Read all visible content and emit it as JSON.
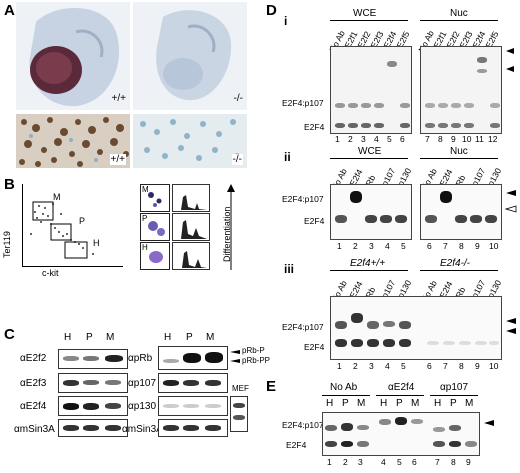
{
  "panels": {
    "a": "A",
    "b": "B",
    "c": "C",
    "d": "D",
    "e": "E"
  },
  "panel_a": {
    "wt": "+/+",
    "ko": "-/-",
    "wt2": "+/+",
    "ko2": "-/-"
  },
  "panel_b": {
    "yaxis": "Ter119",
    "xaxis": "c-kit",
    "gates": [
      "M",
      "P",
      "H"
    ],
    "side": [
      "M",
      "P",
      "H"
    ],
    "diff": "Differentiation"
  },
  "panel_c": {
    "lanes": [
      "H",
      "P",
      "M"
    ],
    "lanes2": [
      "H",
      "P",
      "M"
    ],
    "left": [
      "αE2f2",
      "αE2f3",
      "αE2f4",
      "αmSin3A"
    ],
    "right": [
      "αpRb",
      "αp107",
      "αp130",
      "αmSin3A"
    ],
    "prb": [
      "pRb-P",
      "pRb-PP"
    ],
    "mef": "MEF"
  },
  "panel_d": {
    "sub": [
      "i",
      "ii",
      "iii"
    ],
    "i": {
      "groups": [
        "WCE",
        "Nuc"
      ],
      "lanes": [
        "No Ab",
        "αE2f1",
        "αE2f2",
        "αE2f3",
        "αE2f4",
        "αE2f5",
        "No Ab",
        "αE2f1",
        "αE2f2",
        "αE2f3",
        "αE2f4",
        "αE2f5"
      ],
      "nums": [
        "1",
        "2",
        "3",
        "4",
        "5",
        "6",
        "7",
        "8",
        "9",
        "10",
        "11",
        "12"
      ],
      "bands": [
        "E2F4:p107",
        "E2F4"
      ]
    },
    "ii": {
      "groups": [
        "WCE",
        "Nuc"
      ],
      "lanes": [
        "No Ab",
        "αE2f4",
        "αRb",
        "αp107",
        "αp130",
        "No Ab",
        "αE2f4",
        "αRb",
        "αp107",
        "αp130"
      ],
      "nums": [
        "1",
        "2",
        "3",
        "4",
        "5",
        "6",
        "7",
        "8",
        "9",
        "10"
      ],
      "bands": [
        "E2F4:p107",
        "E2F4"
      ]
    },
    "iii": {
      "groups": [
        "E2f4+/+",
        "E2f4-/-"
      ],
      "lanes": [
        "No Ab",
        "αE2f4",
        "αRb",
        "αp107",
        "αp130",
        "No Ab",
        "αE2f4",
        "αRb",
        "αp107",
        "αp130"
      ],
      "nums": [
        "1",
        "2",
        "3",
        "4",
        "5",
        "6",
        "7",
        "8",
        "9",
        "10"
      ],
      "bands": [
        "E2F4:p107",
        "E2F4"
      ]
    }
  },
  "panel_e": {
    "groups": [
      "No Ab",
      "αE2f4",
      "αp107"
    ],
    "lanes": [
      "H",
      "P",
      "M",
      "H",
      "P",
      "M",
      "H",
      "P",
      "M"
    ],
    "nums": [
      "1",
      "2",
      "3",
      "4",
      "5",
      "6",
      "7",
      "8",
      "9"
    ],
    "bands": [
      "E2F4:p107",
      "E2F4"
    ]
  }
}
